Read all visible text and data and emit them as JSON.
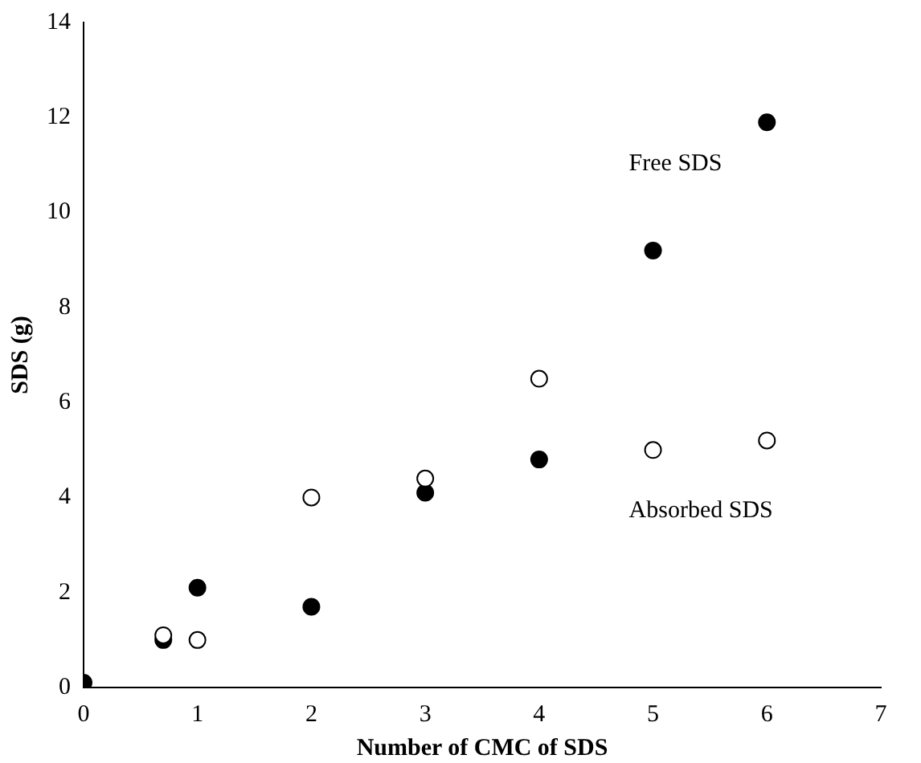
{
  "chart_data": {
    "type": "scatter",
    "xlabel": "Number of CMC of SDS",
    "ylabel": "SDS (g)",
    "xlim": [
      0,
      7
    ],
    "ylim": [
      0,
      14
    ],
    "xticks": [
      0,
      1,
      2,
      3,
      4,
      5,
      6,
      7
    ],
    "yticks": [
      0,
      2,
      4,
      6,
      8,
      10,
      12,
      14
    ],
    "grid": false,
    "legend": false,
    "marker": "circle",
    "series": [
      {
        "name": "Free SDS",
        "color": "#000000",
        "x": [
          0,
          0.7,
          1,
          2,
          3,
          4,
          5,
          6
        ],
        "values": [
          0.1,
          1.0,
          2.1,
          1.7,
          4.1,
          4.8,
          9.2,
          11.9
        ]
      },
      {
        "name": "Absorbed SDS",
        "color": "#ffffff",
        "x": [
          0.7,
          1,
          2,
          3,
          4,
          5,
          6
        ],
        "values": [
          1.1,
          1.0,
          4.0,
          4.4,
          6.5,
          5.0,
          5.2
        ]
      }
    ]
  }
}
